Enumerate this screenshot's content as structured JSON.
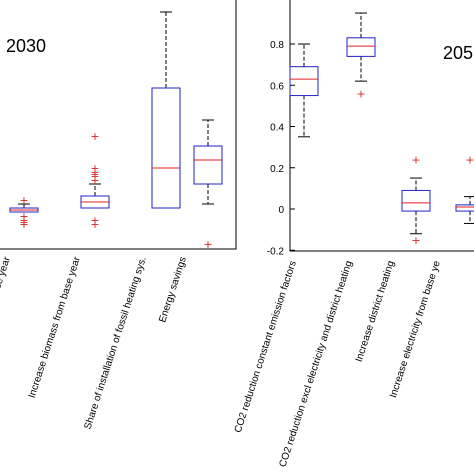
{
  "chart_data": [
    {
      "type": "boxplot",
      "panel_label": "2030",
      "ylim": [
        -0.2,
        1.0
      ],
      "yticks": [],
      "grid": false,
      "colors": {
        "box": "#2020c8",
        "median": "#e02020",
        "outlier": "#e02020",
        "whisker": "#000000"
      },
      "categories": [
        "ease electricity from base year",
        "Increase biomass from base year",
        "Share of installation of fossil heating sys.",
        "Energy savings"
      ],
      "boxes": [
        {
          "whislo": -0.02,
          "q1": -0.02,
          "med": -0.01,
          "q3": 0.0,
          "whishi": 0.02,
          "fliers": [
            0.04,
            -0.04,
            -0.06,
            -0.07,
            -0.08
          ]
        },
        {
          "whislo": -0.0,
          "q1": 0.0,
          "med": 0.03,
          "q3": 0.06,
          "whishi": 0.12,
          "fliers": [
            0.14,
            0.16,
            0.17,
            0.18,
            0.2,
            -0.06,
            -0.08,
            0.36
          ]
        },
        {
          "whislo": 0.0,
          "q1": 0.0,
          "med": 0.2,
          "q3": 0.6,
          "whishi": 0.98,
          "fliers": []
        },
        {
          "whislo": 0.02,
          "q1": 0.12,
          "med": 0.24,
          "q3": 0.31,
          "whishi": 0.44,
          "fliers": [
            -0.18
          ]
        }
      ]
    },
    {
      "type": "boxplot",
      "panel_label": "205",
      "ylim": [
        -0.2,
        0.95
      ],
      "yticks": [
        "-0.2",
        "0",
        "0.2",
        "0.4",
        "0.6",
        "0.8"
      ],
      "grid": false,
      "colors": {
        "box": "#2020c8",
        "median": "#e02020",
        "outlier": "#e02020",
        "whisker": "#000000"
      },
      "categories": [
        "CO2 reduction constant emission factors",
        "CO2 reduction excl electricity and district heating",
        "Increase district heating",
        "Increase electricity from base ye"
      ],
      "boxes": [
        {
          "whislo": 0.35,
          "q1": 0.55,
          "med": 0.63,
          "q3": 0.69,
          "whishi": 0.8,
          "fliers": []
        },
        {
          "whislo": 0.62,
          "q1": 0.74,
          "med": 0.79,
          "q3": 0.83,
          "whishi": 0.95,
          "fliers": [
            0.56
          ]
        },
        {
          "whislo": -0.12,
          "q1": -0.01,
          "med": 0.03,
          "q3": 0.09,
          "whishi": 0.15,
          "fliers": [
            0.24,
            -0.15
          ]
        },
        {
          "whislo": -0.07,
          "q1": -0.01,
          "med": 0.01,
          "q3": 0.02,
          "whishi": 0.06,
          "fliers": [
            0.24
          ]
        }
      ]
    }
  ]
}
